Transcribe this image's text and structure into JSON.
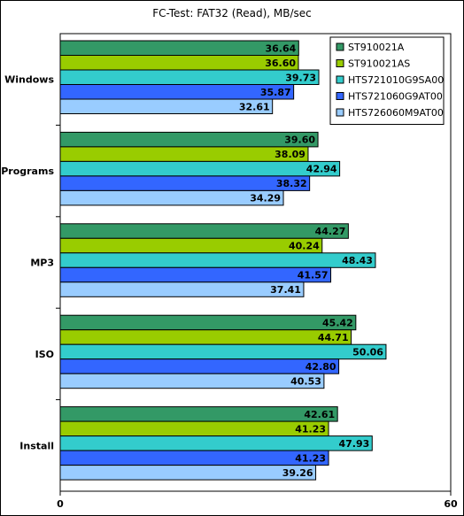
{
  "chart_data": {
    "type": "bar",
    "orientation": "horizontal",
    "title": "FC-Test: FAT32 (Read), MB/sec",
    "categories": [
      "Windows",
      "Programs",
      "MP3",
      "ISO",
      "Install"
    ],
    "series": [
      {
        "name": "ST910021A",
        "color": "#339966",
        "values": [
          36.64,
          39.6,
          44.27,
          45.42,
          42.61
        ]
      },
      {
        "name": "ST910021AS",
        "color": "#99cc00",
        "values": [
          36.6,
          38.09,
          40.24,
          44.71,
          41.23
        ]
      },
      {
        "name": "HTS721010G9SA00",
        "color": "#33cccc",
        "values": [
          39.73,
          42.94,
          48.43,
          50.06,
          47.93
        ]
      },
      {
        "name": "HTS721060G9AT00",
        "color": "#3366ff",
        "values": [
          35.87,
          38.32,
          41.57,
          42.8,
          41.23
        ]
      },
      {
        "name": "HTS726060M9AT00",
        "color": "#99ccff",
        "values": [
          32.61,
          34.29,
          37.41,
          40.53,
          39.26
        ]
      }
    ],
    "xlim": [
      0,
      60
    ],
    "ticks": [
      "0",
      "60"
    ],
    "value_labels": [
      [
        "36.64",
        "39.60",
        "44.27",
        "45.42",
        "42.61"
      ],
      [
        "36.60",
        "38.09",
        "40.24",
        "44.71",
        "41.23"
      ],
      [
        "39.73",
        "42.94",
        "48.43",
        "50.06",
        "47.93"
      ],
      [
        "35.87",
        "38.32",
        "41.57",
        "42.80",
        "41.23"
      ],
      [
        "32.61",
        "34.29",
        "37.41",
        "40.53",
        "39.26"
      ]
    ],
    "legend": {
      "position": "top-right"
    },
    "grid": false
  }
}
